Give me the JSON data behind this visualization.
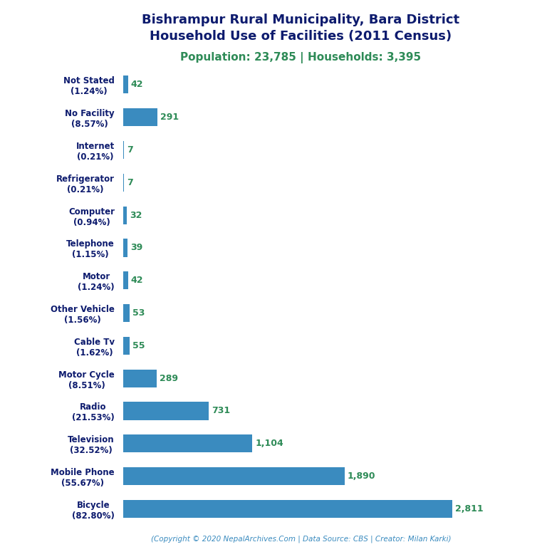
{
  "title_line1": "Bishrampur Rural Municipality, Bara District",
  "title_line2": "Household Use of Facilities (2011 Census)",
  "subtitle": "Population: 23,785 | Households: 3,395",
  "footer": "(Copyright © 2020 NepalArchives.Com | Data Source: CBS | Creator: Milan Karki)",
  "categories": [
    "Not Stated\n(1.24%)",
    "No Facility\n(8.57%)",
    "Internet\n(0.21%)",
    "Refrigerator\n(0.21%)",
    "Computer\n(0.94%)",
    "Telephone\n(1.15%)",
    "Motor\n(1.24%)",
    "Other Vehicle\n(1.56%)",
    "Cable Tv\n(1.62%)",
    "Motor Cycle\n(8.51%)",
    "Radio\n(21.53%)",
    "Television\n(32.52%)",
    "Mobile Phone\n(55.67%)",
    "Bicycle\n(82.80%)"
  ],
  "values": [
    42,
    291,
    7,
    7,
    32,
    39,
    42,
    53,
    55,
    289,
    731,
    1104,
    1890,
    2811
  ],
  "bar_color": "#3A8BBF",
  "value_color": "#2E8B57",
  "title_color": "#0D1B6E",
  "subtitle_color": "#2E8B57",
  "footer_color": "#3A8BBF",
  "background_color": "#FFFFFF",
  "xlim": [
    0,
    3200
  ]
}
